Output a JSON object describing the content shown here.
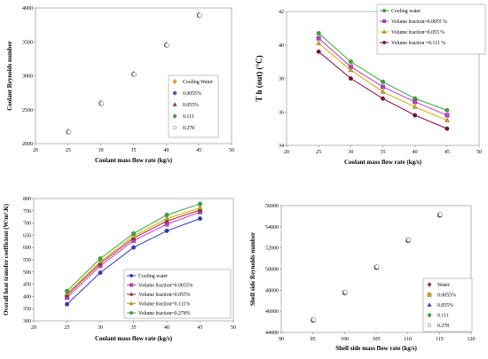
{
  "chart_data": [
    {
      "id": "chart-a",
      "type": "scatter",
      "xlabel": "Coolant mass flow rate (kg/s)",
      "ylabel": "Coolant Reynolds number",
      "xlim": [
        20,
        50
      ],
      "ylim": [
        2000,
        4000
      ],
      "xticks": [
        20,
        25,
        30,
        35,
        40,
        45,
        50
      ],
      "yticks": [
        2000,
        2500,
        3000,
        3500,
        4000
      ],
      "legend_position": "right",
      "x": [
        25,
        30,
        35,
        40,
        45
      ],
      "series": [
        {
          "name": "Cooling Water",
          "values": [
            2180,
            2600,
            3030,
            3460,
            3900
          ],
          "color": "#f0b000",
          "marker": "diamond"
        },
        {
          "name": "0.0055%",
          "values": [
            2160,
            2580,
            3010,
            3440,
            3880
          ],
          "color": "#8a2be2",
          "marker": "circle"
        },
        {
          "name": "0.055%",
          "values": [
            2150,
            2570,
            3000,
            3430,
            3870
          ],
          "color": "#a52a2a",
          "marker": "triangle"
        },
        {
          "name": "0.111",
          "values": [
            2140,
            2560,
            2990,
            3420,
            3860
          ],
          "color": "#33aa33",
          "marker": "diamond"
        },
        {
          "name": "0.278",
          "values": [
            2130,
            2550,
            2980,
            3410,
            3850
          ],
          "color": "#ffffff",
          "marker": "circle"
        }
      ]
    },
    {
      "id": "chart-b",
      "type": "line",
      "xlabel": "Coolant mass flow rate (kg/s)",
      "ylabel": "T h (out) (°C)",
      "xlim": [
        20,
        50
      ],
      "ylim": [
        34,
        42
      ],
      "xticks": [
        20,
        25,
        30,
        35,
        40,
        45,
        50
      ],
      "yticks": [
        34,
        36,
        38,
        40,
        42
      ],
      "legend_position": "top-right",
      "x": [
        25,
        30,
        35,
        40,
        45
      ],
      "series": [
        {
          "name": "Cooling water",
          "values": [
            40.7,
            39.0,
            37.8,
            36.8,
            36.1
          ],
          "color": "#33aa33",
          "marker": "circle"
        },
        {
          "name": "Volume fraction=0.0055 %",
          "values": [
            40.4,
            38.7,
            37.5,
            36.6,
            35.8
          ],
          "color": "#cc33cc",
          "marker": "square"
        },
        {
          "name": "Volume fraction=0.055 %",
          "values": [
            40.1,
            38.5,
            37.2,
            36.3,
            35.5
          ],
          "color": "#d4a800",
          "marker": "triangle"
        },
        {
          "name": "Volume fraction =0.111 %",
          "values": [
            39.6,
            38.0,
            36.8,
            35.8,
            35.0
          ],
          "color": "#800040",
          "marker": "circle"
        }
      ]
    },
    {
      "id": "chart-c",
      "type": "line",
      "xlabel": "Coolant mass flow rate (kg/s)",
      "ylabel": "Overall heat transfer coefficient (W/m².K)",
      "xlim": [
        20,
        50
      ],
      "ylim": [
        300,
        800
      ],
      "xticks": [
        20,
        25,
        30,
        35,
        40,
        45,
        50
      ],
      "yticks": [
        300,
        350,
        400,
        450,
        500,
        550,
        600,
        650,
        700,
        750,
        800
      ],
      "legend_position": "bottom-right",
      "x": [
        25,
        30,
        35,
        40,
        45
      ],
      "series": [
        {
          "name": "Cooling water",
          "values": [
            368,
            497,
            600,
            668,
            718
          ],
          "color": "#3333cc",
          "marker": "circle"
        },
        {
          "name": "Volume fraction=0.0055%",
          "values": [
            395,
            525,
            628,
            695,
            745
          ],
          "color": "#cc33cc",
          "marker": "square"
        },
        {
          "name": "Volume fraction=0.055%",
          "values": [
            405,
            535,
            638,
            708,
            753
          ],
          "color": "#a52a2a",
          "marker": "triangle"
        },
        {
          "name": "Volume fraction=0.111%",
          "values": [
            412,
            542,
            646,
            718,
            762
          ],
          "color": "#d4a800",
          "marker": "triangle"
        },
        {
          "name": "Volume fraction=0.278%",
          "values": [
            422,
            555,
            657,
            733,
            778
          ],
          "color": "#33aa33",
          "marker": "circle"
        }
      ]
    },
    {
      "id": "chart-d",
      "type": "scatter",
      "xlabel": "Shell side mass flow rate (kg/s)",
      "ylabel": "Shell side Reynolds number",
      "xlim": [
        90,
        120
      ],
      "ylim": [
        44000,
        56000
      ],
      "xticks": [
        90,
        95,
        100,
        105,
        110,
        115,
        120
      ],
      "yticks": [
        44000,
        46000,
        48000,
        50000,
        52000,
        54000,
        56000
      ],
      "legend_position": "right",
      "x": [
        95,
        100,
        105,
        110,
        115
      ],
      "series": [
        {
          "name": "Water",
          "values": [
            45150,
            47750,
            50150,
            52700,
            55100
          ],
          "color": "#a52a2a",
          "marker": "diamond"
        },
        {
          "name": "0.0055%",
          "values": [
            45100,
            47700,
            50100,
            52650,
            55050
          ],
          "color": "#d4a800",
          "marker": "square"
        },
        {
          "name": "0.055%",
          "values": [
            45050,
            47650,
            50050,
            52600,
            55000
          ],
          "color": "#5533aa",
          "marker": "triangle"
        },
        {
          "name": "0.111",
          "values": [
            45000,
            47600,
            50000,
            52550,
            54950
          ],
          "color": "#33aa33",
          "marker": "diamond"
        },
        {
          "name": "0.278",
          "values": [
            44950,
            47550,
            49950,
            52500,
            54900
          ],
          "color": "#ffffff",
          "marker": "circle"
        }
      ]
    }
  ]
}
